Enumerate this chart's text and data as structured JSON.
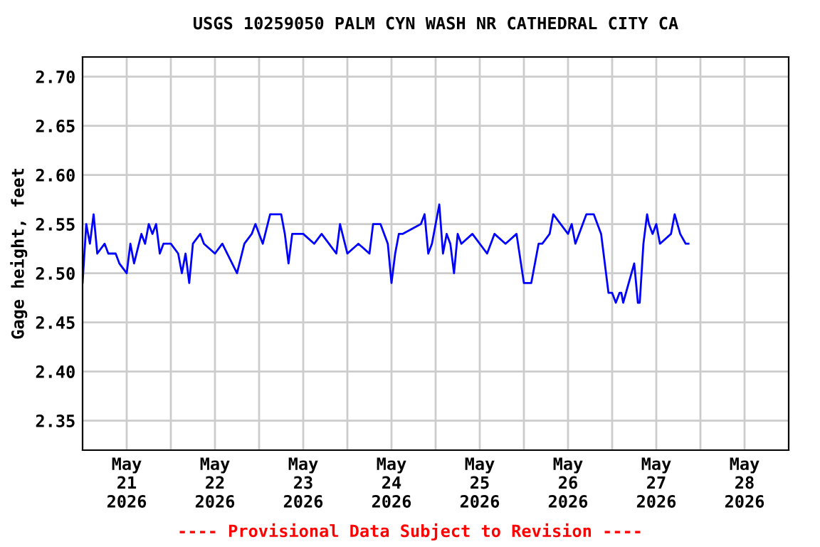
{
  "chart_data": {
    "type": "line",
    "title": "USGS 10259050 PALM CYN WASH NR CATHEDRAL CITY CA",
    "ylabel": "Gage height, feet",
    "x": [
      "2026-05-21T00:00",
      "2026-05-21T01:00",
      "2026-05-21T02:00",
      "2026-05-21T03:00",
      "2026-05-21T04:00",
      "2026-05-21T06:00",
      "2026-05-21T07:00",
      "2026-05-21T09:00",
      "2026-05-21T10:00",
      "2026-05-21T12:00",
      "2026-05-21T13:00",
      "2026-05-21T14:00",
      "2026-05-21T16:00",
      "2026-05-21T17:00",
      "2026-05-21T18:00",
      "2026-05-21T19:00",
      "2026-05-21T20:00",
      "2026-05-21T21:00",
      "2026-05-21T22:00",
      "2026-05-22T00:00",
      "2026-05-22T02:00",
      "2026-05-22T03:00",
      "2026-05-22T04:00",
      "2026-05-22T05:00",
      "2026-05-22T06:00",
      "2026-05-22T08:00",
      "2026-05-22T09:00",
      "2026-05-22T12:00",
      "2026-05-22T14:00",
      "2026-05-22T18:00",
      "2026-05-22T20:00",
      "2026-05-22T22:00",
      "2026-05-22T23:00",
      "2026-05-23T01:00",
      "2026-05-23T03:00",
      "2026-05-23T06:00",
      "2026-05-23T07:00",
      "2026-05-23T08:00",
      "2026-05-23T09:00",
      "2026-05-23T12:00",
      "2026-05-23T15:00",
      "2026-05-23T17:00",
      "2026-05-23T19:00",
      "2026-05-23T21:00",
      "2026-05-23T22:00",
      "2026-05-24T00:00",
      "2026-05-24T03:00",
      "2026-05-24T06:00",
      "2026-05-24T07:00",
      "2026-05-24T09:00",
      "2026-05-24T11:00",
      "2026-05-24T12:00",
      "2026-05-24T13:00",
      "2026-05-24T14:00",
      "2026-05-24T15:00",
      "2026-05-24T20:00",
      "2026-05-24T21:00",
      "2026-05-24T22:00",
      "2026-05-24T23:00",
      "2026-05-25T01:00",
      "2026-05-25T02:00",
      "2026-05-25T03:00",
      "2026-05-25T04:00",
      "2026-05-25T05:00",
      "2026-05-25T06:00",
      "2026-05-25T07:00",
      "2026-05-25T10:00",
      "2026-05-25T14:00",
      "2026-05-25T16:00",
      "2026-05-25T19:00",
      "2026-05-25T22:00",
      "2026-05-26T00:00",
      "2026-05-26T02:00",
      "2026-05-26T04:00",
      "2026-05-26T05:00",
      "2026-05-26T07:00",
      "2026-05-26T08:00",
      "2026-05-26T12:00",
      "2026-05-26T13:00",
      "2026-05-26T14:00",
      "2026-05-26T15:00",
      "2026-05-26T17:00",
      "2026-05-26T19:00",
      "2026-05-26T21:00",
      "2026-05-26T23:00",
      "2026-05-27T00:00",
      "2026-05-27T01:00",
      "2026-05-27T02:00",
      "2026-05-27T02:30",
      "2026-05-27T03:00",
      "2026-05-27T06:00",
      "2026-05-27T07:00",
      "2026-05-27T07:30",
      "2026-05-27T08:30",
      "2026-05-27T09:30",
      "2026-05-27T10:00",
      "2026-05-27T11:00",
      "2026-05-27T12:00",
      "2026-05-27T13:00",
      "2026-05-27T16:00",
      "2026-05-27T17:00",
      "2026-05-27T18:30",
      "2026-05-27T20:00",
      "2026-05-27T20:45"
    ],
    "values": [
      2.49,
      2.55,
      2.53,
      2.56,
      2.52,
      2.53,
      2.52,
      2.52,
      2.51,
      2.5,
      2.53,
      2.51,
      2.54,
      2.53,
      2.55,
      2.54,
      2.55,
      2.52,
      2.53,
      2.53,
      2.52,
      2.5,
      2.52,
      2.49,
      2.53,
      2.54,
      2.53,
      2.52,
      2.53,
      2.5,
      2.53,
      2.54,
      2.55,
      2.53,
      2.56,
      2.56,
      2.54,
      2.51,
      2.54,
      2.54,
      2.53,
      2.54,
      2.53,
      2.52,
      2.55,
      2.52,
      2.53,
      2.52,
      2.55,
      2.55,
      2.53,
      2.49,
      2.52,
      2.54,
      2.54,
      2.55,
      2.56,
      2.52,
      2.53,
      2.57,
      2.52,
      2.54,
      2.53,
      2.5,
      2.54,
      2.53,
      2.54,
      2.52,
      2.54,
      2.53,
      2.54,
      2.49,
      2.49,
      2.53,
      2.53,
      2.54,
      2.56,
      2.54,
      2.55,
      2.53,
      2.54,
      2.56,
      2.56,
      2.54,
      2.48,
      2.48,
      2.47,
      2.48,
      2.48,
      2.47,
      2.51,
      2.47,
      2.47,
      2.53,
      2.56,
      2.55,
      2.54,
      2.55,
      2.53,
      2.54,
      2.56,
      2.54,
      2.53,
      2.53
    ],
    "color": "#0000ff",
    "xlim": [
      "2026-05-21T00:00",
      "2026-05-29T00:00"
    ],
    "xticks": [
      {
        "value": "2026-05-21T12:00",
        "label": "May\n21\n2026"
      },
      {
        "value": "2026-05-22T12:00",
        "label": "May\n22\n2026"
      },
      {
        "value": "2026-05-23T12:00",
        "label": "May\n23\n2026"
      },
      {
        "value": "2026-05-24T12:00",
        "label": "May\n24\n2026"
      },
      {
        "value": "2026-05-25T12:00",
        "label": "May\n25\n2026"
      },
      {
        "value": "2026-05-26T12:00",
        "label": "May\n26\n2026"
      },
      {
        "value": "2026-05-27T12:00",
        "label": "May\n27\n2026"
      },
      {
        "value": "2026-05-28T12:00",
        "label": "May\n28\n2026"
      },
      {
        "value": "2026-05-22T00:00",
        "label": null
      },
      {
        "value": "2026-05-23T00:00",
        "label": null
      },
      {
        "value": "2026-05-24T00:00",
        "label": null
      },
      {
        "value": "2026-05-25T00:00",
        "label": null
      },
      {
        "value": "2026-05-26T00:00",
        "label": null
      },
      {
        "value": "2026-05-27T00:00",
        "label": null
      },
      {
        "value": "2026-05-28T00:00",
        "label": null
      }
    ],
    "ylim": [
      2.32,
      2.72
    ],
    "yticks": [
      {
        "value": 2.35,
        "label": "2.35"
      },
      {
        "value": 2.4,
        "label": "2.40"
      },
      {
        "value": 2.45,
        "label": "2.45"
      },
      {
        "value": 2.5,
        "label": "2.50"
      },
      {
        "value": 2.55,
        "label": "2.55"
      },
      {
        "value": 2.6,
        "label": "2.60"
      },
      {
        "value": 2.65,
        "label": "2.65"
      },
      {
        "value": 2.7,
        "label": "2.70"
      }
    ],
    "grid": true,
    "annotations": [
      "---- Provisional Data Subject to Revision ----"
    ]
  }
}
